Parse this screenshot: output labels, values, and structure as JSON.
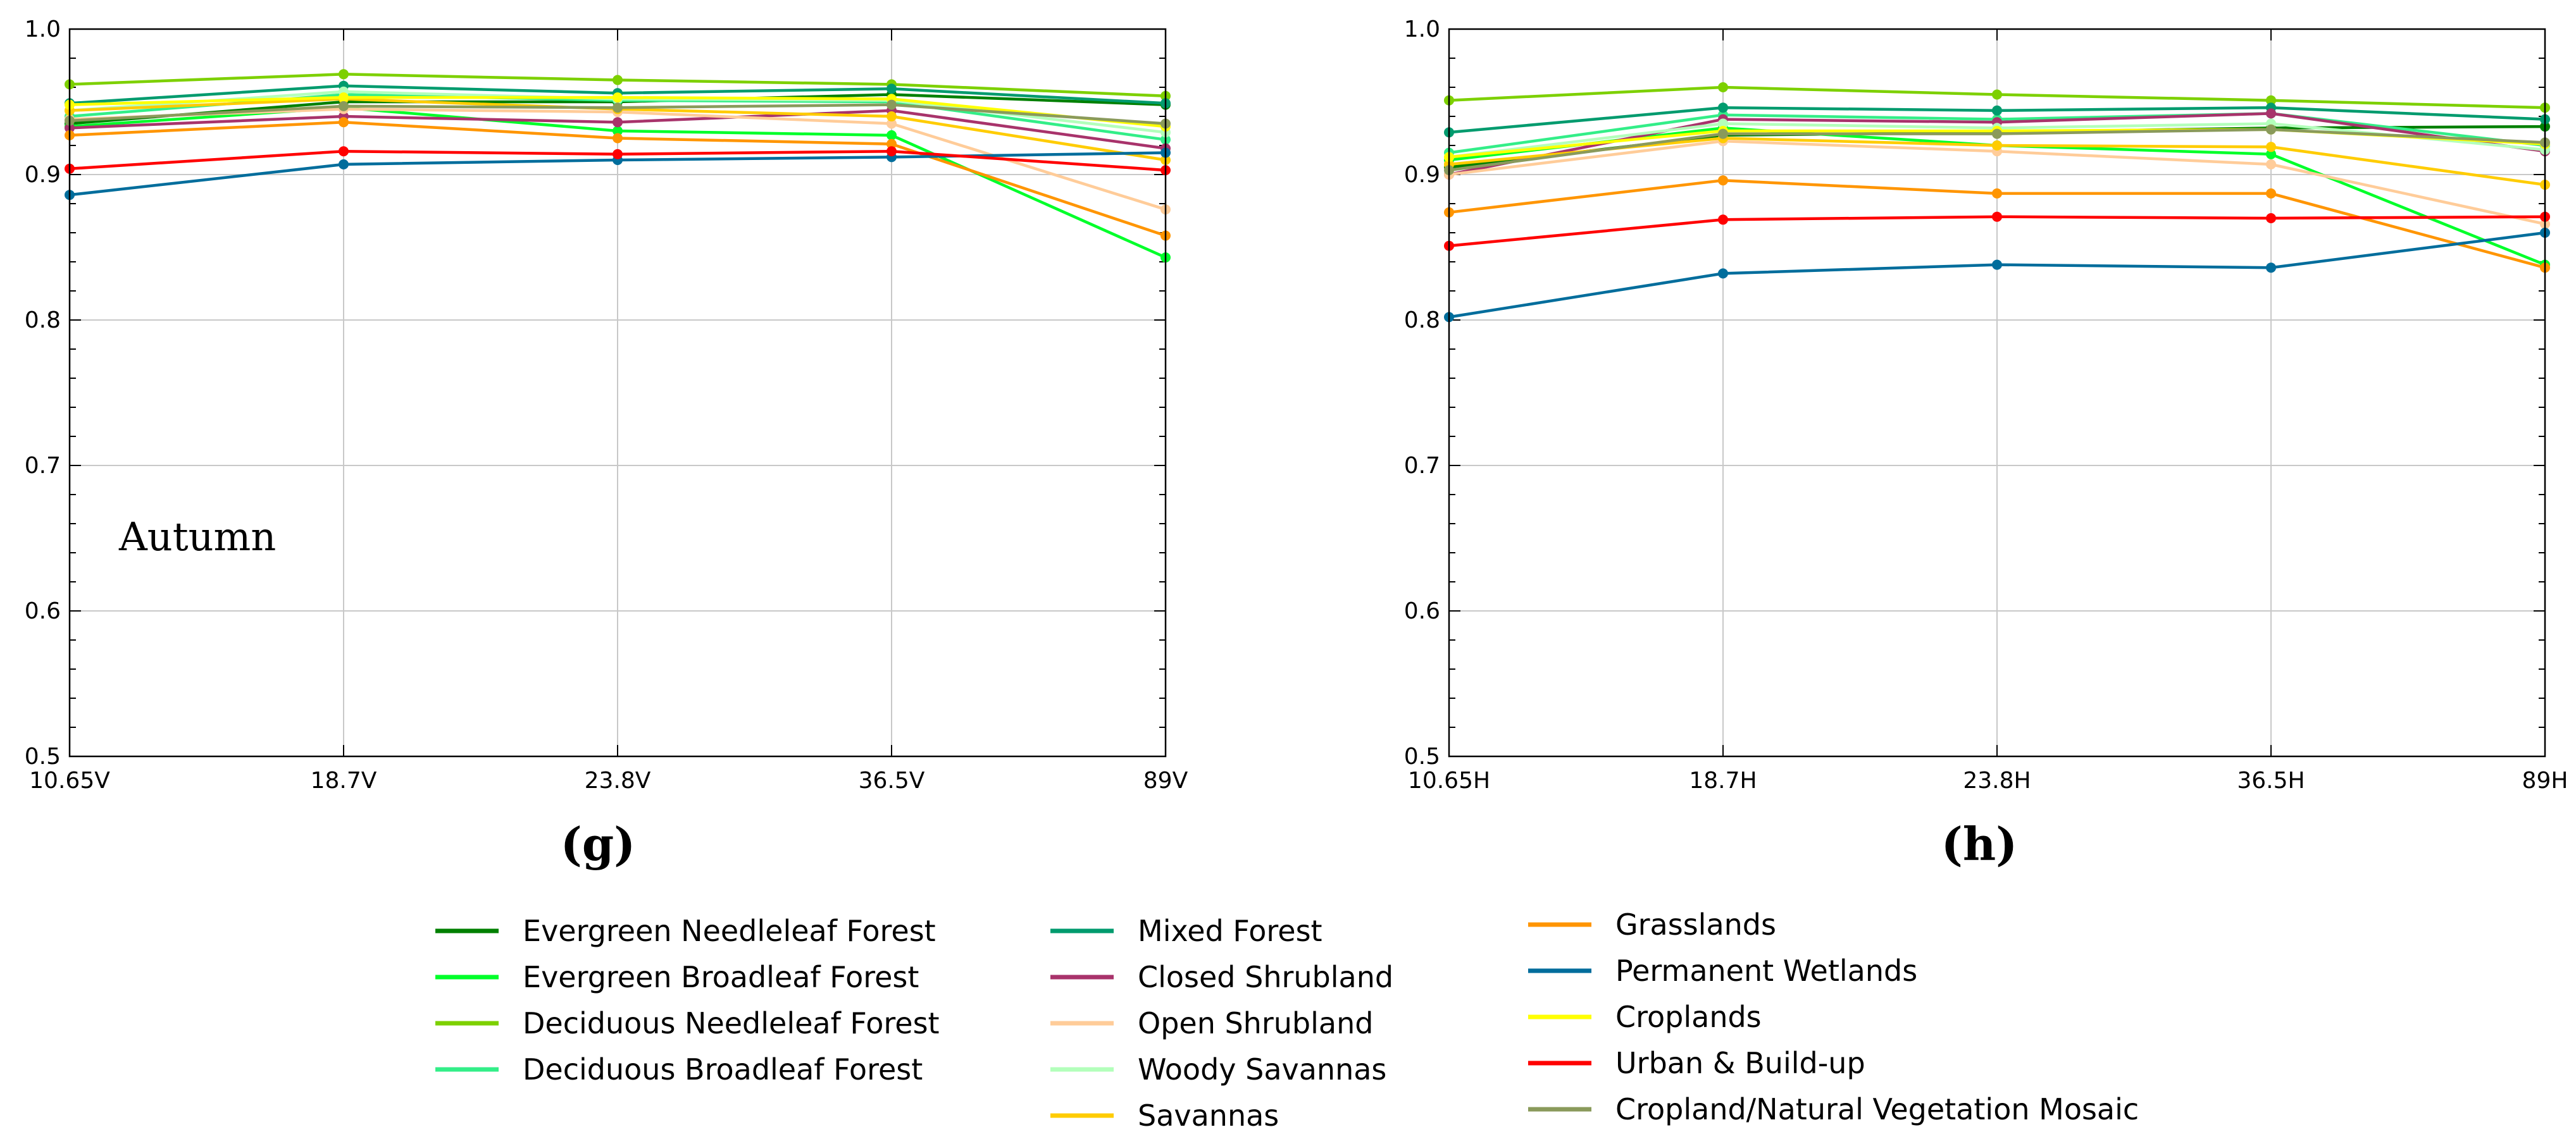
{
  "chart_data": [
    {
      "type": "line",
      "panel_label": "(g)",
      "annotation": "Autumn",
      "categories": [
        "10.65V",
        "18.7V",
        "23.8V",
        "36.5V",
        "89V"
      ],
      "ylim": [
        0.5,
        1.0
      ],
      "yticks": [
        "0.5",
        "0.6",
        "0.7",
        "0.8",
        "0.9",
        "1.0"
      ],
      "grid": true,
      "series": [
        {
          "name": "Evergreen Needleleaf Forest",
          "color": "#008000",
          "values": [
            0.935,
            0.95,
            0.95,
            0.955,
            0.948
          ]
        },
        {
          "name": "Evergreen Broadleaf Forest",
          "color": "#00ff2a",
          "values": [
            0.933,
            0.946,
            0.93,
            0.927,
            0.843
          ]
        },
        {
          "name": "Deciduous Needleleaf Forest",
          "color": "#7dd000",
          "values": [
            0.962,
            0.969,
            0.965,
            0.962,
            0.954
          ]
        },
        {
          "name": "Deciduous Broadleaf Forest",
          "color": "#33ee88",
          "values": [
            0.94,
            0.955,
            0.951,
            0.95,
            0.924
          ]
        },
        {
          "name": "Mixed Forest",
          "color": "#009b6e",
          "values": [
            0.949,
            0.961,
            0.956,
            0.959,
            0.949
          ]
        },
        {
          "name": "Closed Shrubland",
          "color": "#a8336b",
          "values": [
            0.932,
            0.94,
            0.936,
            0.944,
            0.918
          ]
        },
        {
          "name": "Open Shrubland",
          "color": "#ffcc99",
          "values": [
            0.938,
            0.945,
            0.943,
            0.935,
            0.876
          ]
        },
        {
          "name": "Woody Savannas",
          "color": "#b3ffbb",
          "values": [
            0.944,
            0.957,
            0.952,
            0.951,
            0.929
          ]
        },
        {
          "name": "Savannas",
          "color": "#ffcc00",
          "values": [
            0.944,
            0.952,
            0.945,
            0.94,
            0.91
          ]
        },
        {
          "name": "Grasslands",
          "color": "#ff9500",
          "values": [
            0.927,
            0.936,
            0.925,
            0.921,
            0.858
          ]
        },
        {
          "name": "Permanent Wetlands",
          "color": "#006d9c",
          "values": [
            0.886,
            0.907,
            0.91,
            0.912,
            0.915
          ]
        },
        {
          "name": "Croplands",
          "color": "#ffff00",
          "values": [
            0.948,
            0.953,
            0.953,
            0.952,
            0.933
          ]
        },
        {
          "name": "Urban & Build-up",
          "color": "#ff0000",
          "values": [
            0.904,
            0.916,
            0.914,
            0.916,
            0.903
          ]
        },
        {
          "name": "Cropland/Natural Vegetation Mosaic",
          "color": "#8a9a5b",
          "values": [
            0.937,
            0.947,
            0.946,
            0.948,
            0.935
          ]
        }
      ]
    },
    {
      "type": "line",
      "panel_label": "(h)",
      "categories": [
        "10.65H",
        "18.7H",
        "23.8H",
        "36.5H",
        "89H"
      ],
      "ylim": [
        0.5,
        1.0
      ],
      "yticks": [
        "0.5",
        "0.6",
        "0.7",
        "0.8",
        "0.9",
        "1.0"
      ],
      "grid": true,
      "series": [
        {
          "name": "Evergreen Needleleaf Forest",
          "color": "#008000",
          "values": [
            0.905,
            0.927,
            0.929,
            0.932,
            0.933
          ]
        },
        {
          "name": "Evergreen Broadleaf Forest",
          "color": "#00ff2a",
          "values": [
            0.91,
            0.932,
            0.92,
            0.914,
            0.838
          ]
        },
        {
          "name": "Deciduous Needleleaf Forest",
          "color": "#7dd000",
          "values": [
            0.951,
            0.96,
            0.955,
            0.951,
            0.946
          ]
        },
        {
          "name": "Deciduous Broadleaf Forest",
          "color": "#33ee88",
          "values": [
            0.915,
            0.941,
            0.938,
            0.942,
            0.92
          ]
        },
        {
          "name": "Mixed Forest",
          "color": "#009b6e",
          "values": [
            0.929,
            0.946,
            0.944,
            0.946,
            0.938
          ]
        },
        {
          "name": "Closed Shrubland",
          "color": "#a8336b",
          "values": [
            0.9,
            0.938,
            0.936,
            0.942,
            0.916
          ]
        },
        {
          "name": "Open Shrubland",
          "color": "#ffcc99",
          "values": [
            0.9,
            0.923,
            0.916,
            0.907,
            0.866
          ]
        },
        {
          "name": "Woody Savannas",
          "color": "#b3ffbb",
          "values": [
            0.912,
            0.935,
            0.932,
            0.935,
            0.917
          ]
        },
        {
          "name": "Savannas",
          "color": "#ffcc00",
          "values": [
            0.907,
            0.925,
            0.92,
            0.919,
            0.893
          ]
        },
        {
          "name": "Grasslands",
          "color": "#ff9500",
          "values": [
            0.874,
            0.896,
            0.887,
            0.887,
            0.836
          ]
        },
        {
          "name": "Permanent Wetlands",
          "color": "#006d9c",
          "values": [
            0.802,
            0.832,
            0.838,
            0.836,
            0.86
          ]
        },
        {
          "name": "Croplands",
          "color": "#ffff00",
          "values": [
            0.912,
            0.93,
            0.93,
            0.931,
            0.921
          ]
        },
        {
          "name": "Urban & Build-up",
          "color": "#ff0000",
          "values": [
            0.851,
            0.869,
            0.871,
            0.87,
            0.871
          ]
        },
        {
          "name": "Cropland/Natural Vegetation Mosaic",
          "color": "#8a9a5b",
          "values": [
            0.903,
            0.928,
            0.928,
            0.931,
            0.922
          ]
        }
      ]
    }
  ],
  "legend": {
    "columns": [
      [
        "Evergreen Needleleaf Forest",
        "Evergreen Broadleaf Forest",
        "Deciduous Needleleaf Forest",
        "Deciduous Broadleaf Forest"
      ],
      [
        "Mixed Forest",
        "Closed Shrubland",
        "Open Shrubland",
        "Woody Savannas",
        "Savannas"
      ],
      [
        "Grasslands",
        "Permanent Wetlands",
        "Croplands",
        "Urban & Build-up",
        "Cropland/Natural Vegetation Mosaic"
      ]
    ]
  }
}
